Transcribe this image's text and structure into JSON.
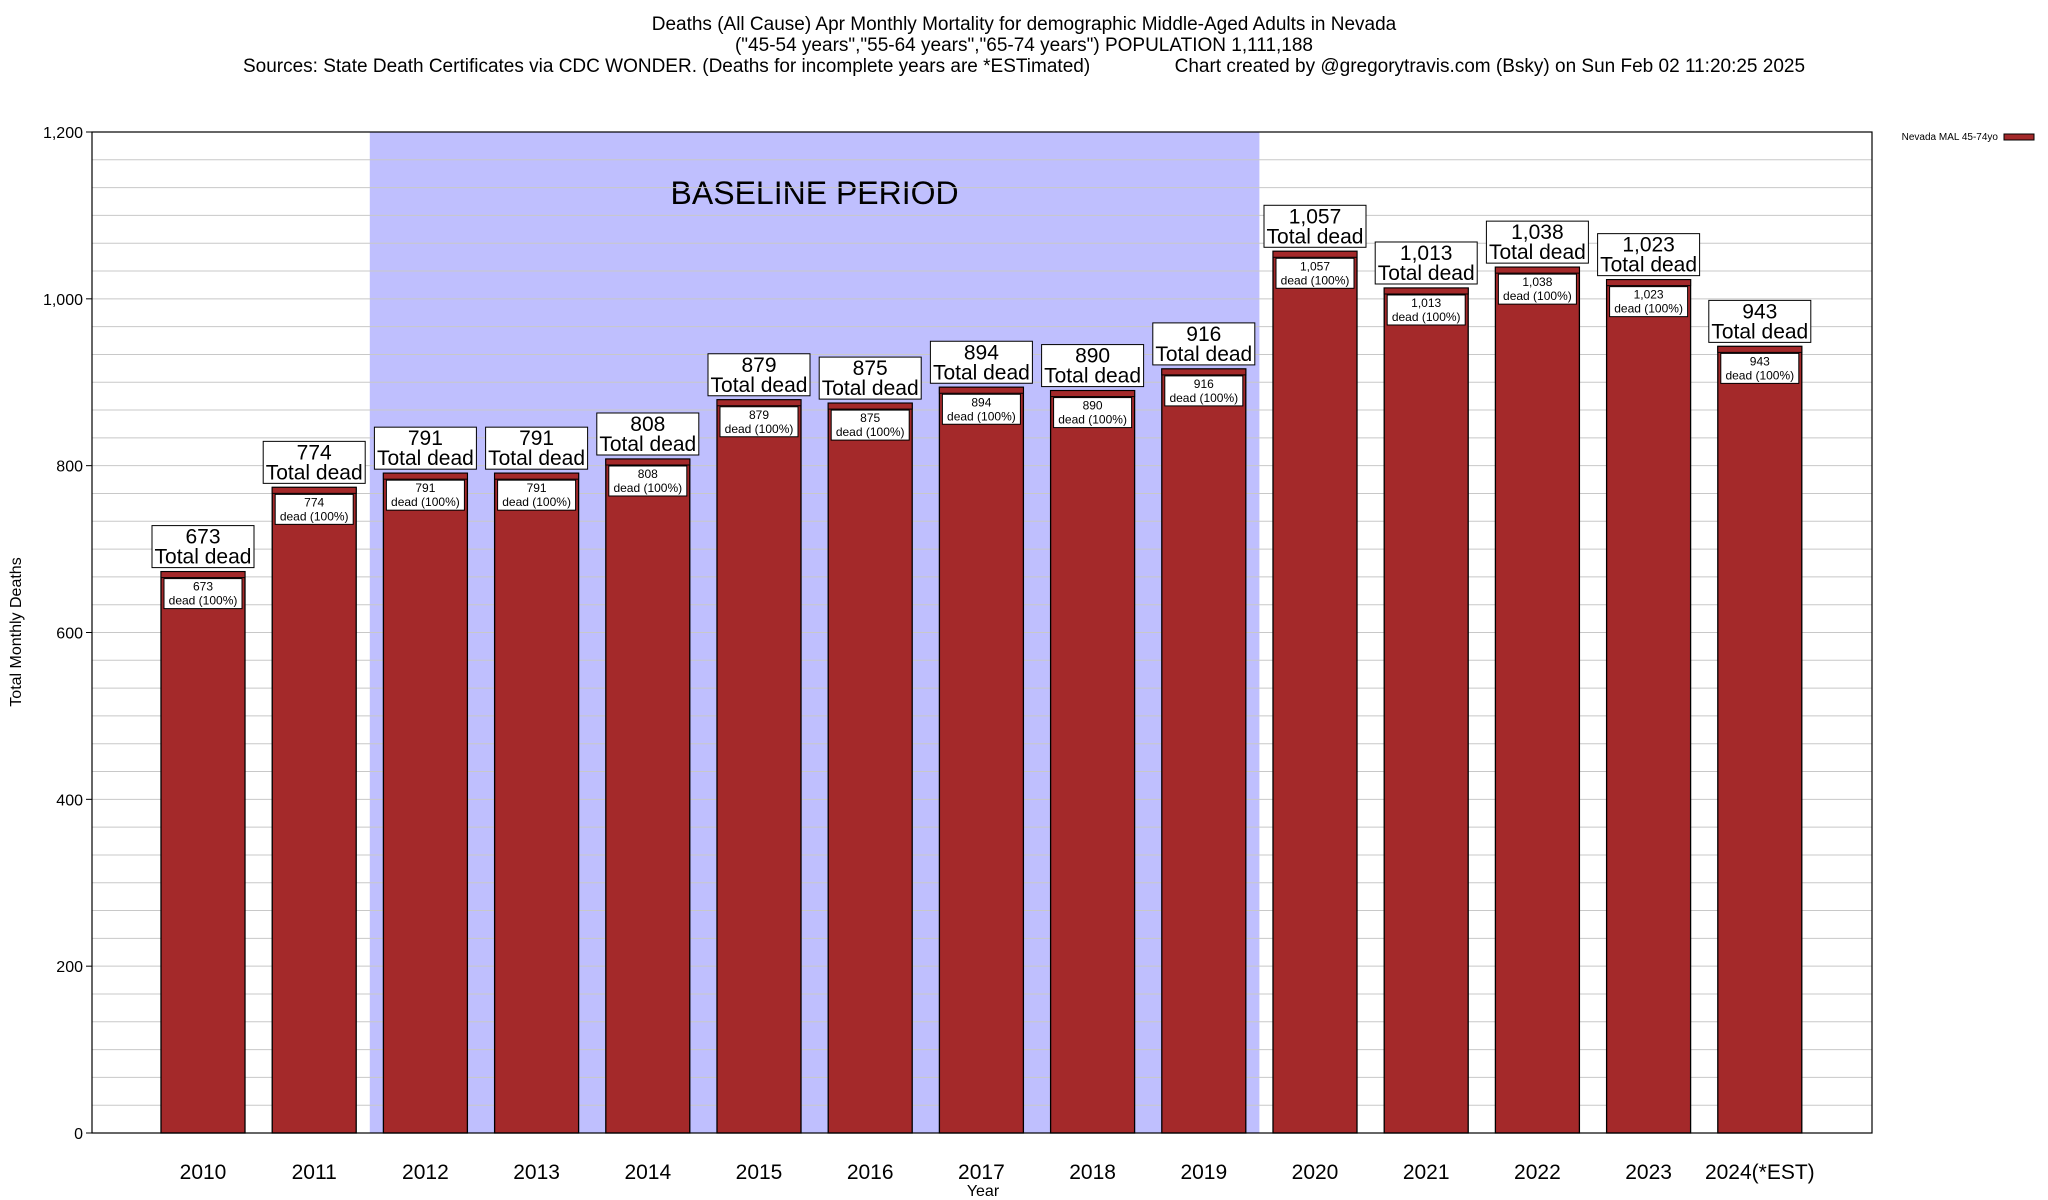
{
  "header": {
    "line1": "Deaths (All Cause) Apr Monthly Mortality for demographic Middle-Aged Adults in Nevada",
    "line2": "(\"45-54 years\",\"55-64 years\",\"65-74 years\") POPULATION 1,111,188",
    "line3": "Sources: State Death Certificates via CDC WONDER. (Deaths for incomplete years are *ESTimated)                Chart created by @gregorytravis.com (Bsky) on Sun Feb 02 11:20:25 2025"
  },
  "chart_data": {
    "type": "bar",
    "xlabel": "Year",
    "ylabel": "Total Monthly Deaths",
    "ylim": [
      0,
      1200
    ],
    "ytick_labels": [
      "0",
      "200",
      "400",
      "600",
      "800",
      "1,000",
      "1,200"
    ],
    "grid": true,
    "legend": {
      "placement": "top-right",
      "entries": [
        "Nevada MAL 45-74yo"
      ]
    },
    "colors": {
      "bar": "#a4292a",
      "baseline_shade": "#bfbffe"
    },
    "categories": [
      "2010",
      "2011",
      "2012",
      "2013",
      "2014",
      "2015",
      "2016",
      "2017",
      "2018",
      "2019",
      "2020",
      "2021",
      "2022",
      "2023",
      "2024(*EST)"
    ],
    "series": [
      {
        "name": "Nevada MAL 45-74yo",
        "values": [
          673,
          774,
          791,
          791,
          808,
          879,
          875,
          894,
          890,
          916,
          1057,
          1013,
          1038,
          1023,
          943
        ]
      }
    ],
    "value_labels": [
      "673",
      "774",
      "791",
      "791",
      "808",
      "879",
      "875",
      "894",
      "890",
      "916",
      "1,057",
      "1,013",
      "1,038",
      "1,023",
      "943"
    ],
    "big_label_suffix": "Total dead",
    "small_label_suffix": "dead (100%)",
    "annotation": {
      "text": "BASELINE PERIOD",
      "from_category": "2012",
      "to_category": "2019"
    }
  }
}
